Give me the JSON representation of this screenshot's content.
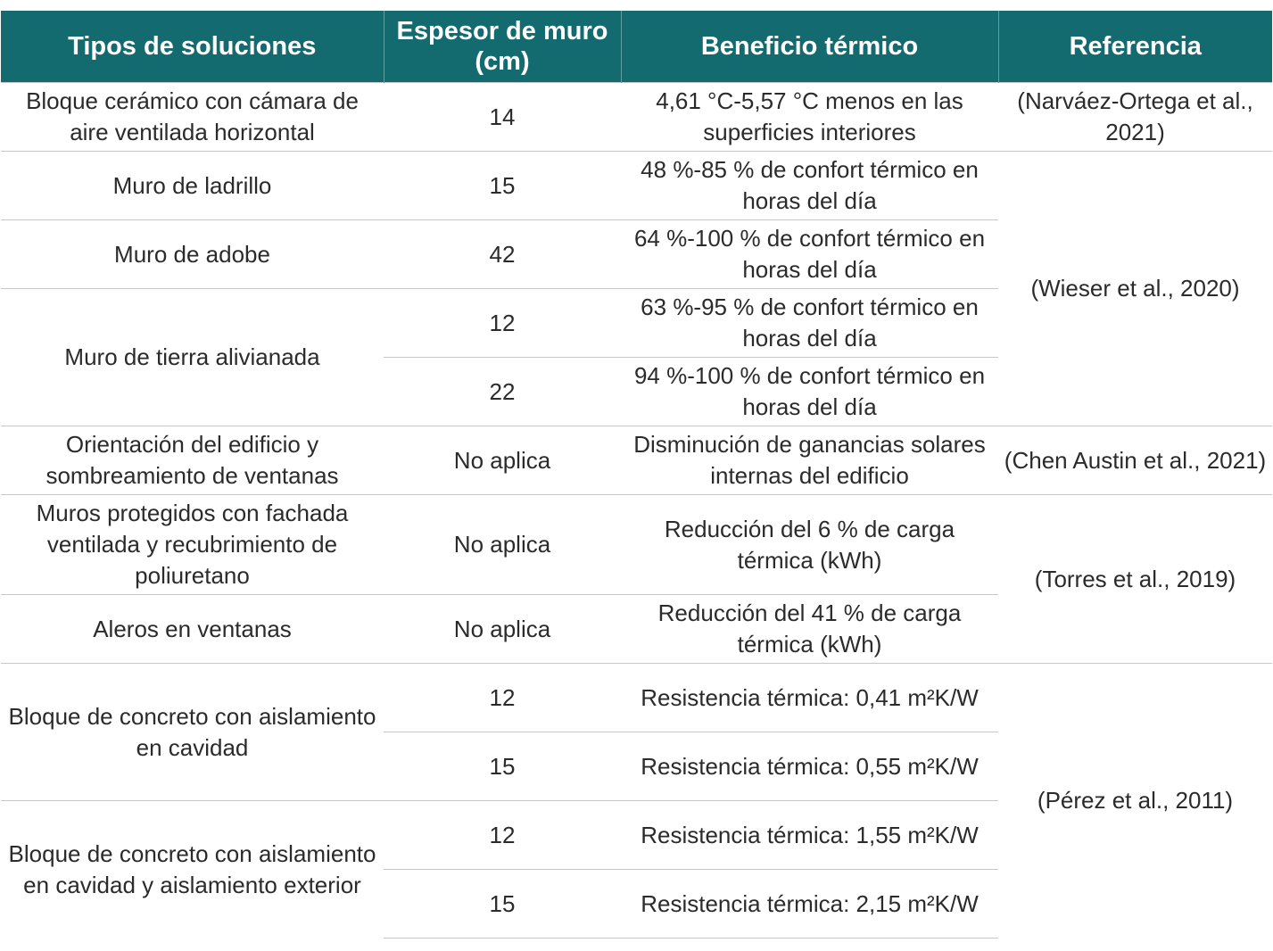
{
  "headers": {
    "type": "Tipos de soluciones",
    "thickness": "Espesor de muro (cm)",
    "benefit": "Beneficio térmico",
    "reference": "Referencia"
  },
  "rows": [
    {
      "type": "Bloque cerámico con cámara de aire ventilada horizontal",
      "thickness": "14",
      "benefit": "4,61 °C-5,57 °C menos en las superficies interiores",
      "reference": "(Narváez-Ortega et al., 2021)"
    },
    {
      "type": "Muro de ladrillo",
      "thickness": "15",
      "benefit": "48 %-85 % de confort térmico en horas del día",
      "reference": "(Wieser et al., 2020)"
    },
    {
      "type": "Muro de adobe",
      "thickness": "42",
      "benefit": "64 %-100 % de confort térmico en horas del día"
    },
    {
      "type": "Muro de tierra alivianada",
      "thickness": "12",
      "benefit": "63 %-95 % de confort térmico en horas del día"
    },
    {
      "thickness": "22",
      "benefit": "94 %-100 % de confort térmico en horas del día"
    },
    {
      "type": "Orientación del edificio y sombreamiento de ventanas",
      "thickness": "No aplica",
      "benefit": "Disminución de ganancias solares internas del edificio",
      "reference": "(Chen Austin et al., 2021)"
    },
    {
      "type": "Muros protegidos con fachada ventilada y recubrimiento de poliuretano",
      "thickness": "No aplica",
      "benefit": "Reducción del 6 % de carga térmica (kWh)",
      "reference": "(Torres et al., 2019)"
    },
    {
      "type": "Aleros en ventanas",
      "thickness": "No aplica",
      "benefit": "Reducción del 41 % de carga térmica (kWh)"
    },
    {
      "type": "Bloque de concreto con aislamiento en cavidad",
      "thickness": "12",
      "benefit": "Resistencia térmica: 0,41 m²K/W",
      "reference": "(Pérez et al., 2011)"
    },
    {
      "thickness": "15",
      "benefit": "Resistencia térmica: 0,55 m²K/W"
    },
    {
      "type": "Bloque de concreto con aislamiento en cavidad y aislamiento exterior",
      "thickness": "12",
      "benefit": "Resistencia térmica: 1,55 m²K/W"
    },
    {
      "thickness": "15",
      "benefit": "Resistencia térmica: 2,15 m²K/W"
    }
  ]
}
